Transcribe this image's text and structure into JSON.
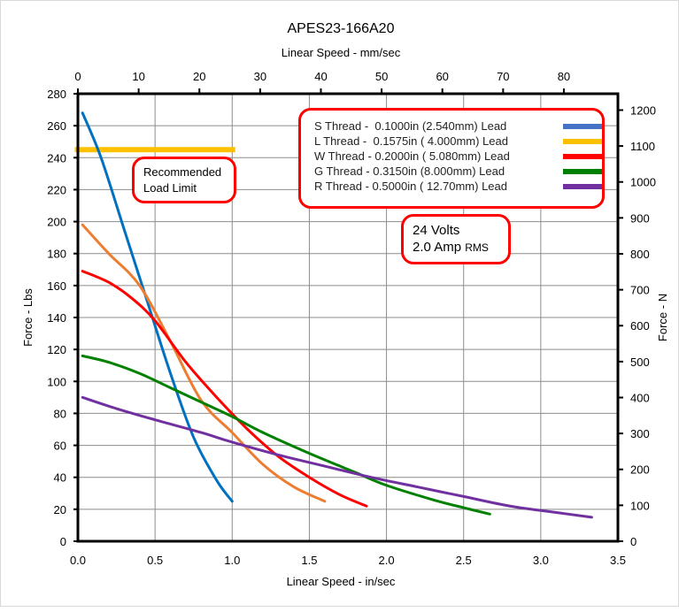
{
  "chart_data": {
    "type": "line",
    "title": "APES23-166A20",
    "xlabel": "Linear Speed - in/sec",
    "x2label": "Linear Speed - mm/sec",
    "ylabel": "Force - Lbs",
    "y2label": "Force - N",
    "xlim": [
      0,
      3.5
    ],
    "ylim": [
      0,
      280
    ],
    "x2lim": [
      0,
      88.9
    ],
    "y2lim": [
      0,
      1245.5
    ],
    "xticks": [
      "0.0",
      "0.5",
      "1.0",
      "1.5",
      "2.0",
      "2.5",
      "3.0",
      "3.5"
    ],
    "yticks": [
      "0",
      "20",
      "40",
      "60",
      "80",
      "100",
      "120",
      "140",
      "160",
      "180",
      "200",
      "220",
      "240",
      "260",
      "280"
    ],
    "x2ticks": [
      "0",
      "10",
      "20",
      "30",
      "40",
      "50",
      "60",
      "70",
      "80"
    ],
    "y2ticks": [
      "0",
      "100",
      "200",
      "300",
      "400",
      "500",
      "600",
      "700",
      "800",
      "900",
      "1000",
      "1100",
      "1200"
    ],
    "grid": true,
    "legend_position": "top-right",
    "series": [
      {
        "name": "S Thread -  0.1000in (2.540mm) Lead",
        "color": "#0070C0",
        "x": [
          0.03,
          0.15,
          0.3,
          0.45,
          0.6,
          0.75,
          0.9,
          1.0
        ],
        "y": [
          268,
          240,
          195,
          150,
          105,
          65,
          38,
          25
        ]
      },
      {
        "name": "L Thread -  0.1575in ( 4.000mm) Lead",
        "color": "#ED7D31",
        "x": [
          0.03,
          0.2,
          0.4,
          0.6,
          0.8,
          1.0,
          1.2,
          1.4,
          1.6
        ],
        "y": [
          198,
          180,
          160,
          125,
          88,
          68,
          48,
          34,
          25
        ]
      },
      {
        "name": "W Thread - 0.2000in ( 5.080mm) Lead",
        "color": "#FF0000",
        "x": [
          0.03,
          0.2,
          0.35,
          0.5,
          0.7,
          0.9,
          1.1,
          1.3,
          1.5,
          1.7,
          1.87
        ],
        "y": [
          169,
          162,
          152,
          138,
          112,
          90,
          70,
          53,
          40,
          29,
          22
        ]
      },
      {
        "name": "G Thread - 0.3150in (8.000mm) Lead",
        "color": "#008000",
        "x": [
          0.03,
          0.2,
          0.4,
          0.6,
          0.8,
          1.0,
          1.2,
          1.5,
          1.8,
          2.0,
          2.3,
          2.5,
          2.67
        ],
        "y": [
          116,
          112,
          105,
          96,
          87,
          78,
          68,
          55,
          43,
          35,
          26,
          21,
          17
        ]
      },
      {
        "name": "R Thread - 0.5000in ( 12.70mm) Lead",
        "color": "#7030A0",
        "x": [
          0.03,
          0.25,
          0.5,
          0.8,
          1.0,
          1.3,
          1.6,
          1.9,
          2.2,
          2.5,
          2.8,
          3.1,
          3.33
        ],
        "y": [
          90,
          83,
          76,
          68,
          62,
          54,
          47,
          40,
          34,
          28,
          22,
          18,
          15
        ]
      }
    ],
    "legend_swatch_colors": [
      "#4472C4",
      "#FFC000",
      "#FF0000",
      "#008000",
      "#7030A0"
    ],
    "load_limit": {
      "label": "Recommended Load Limit",
      "label_lines": [
        "Recommended",
        "Load Limit"
      ],
      "value": 245,
      "x": [
        -0.02,
        1.02
      ],
      "color": "#FFC000"
    },
    "annotations": {
      "voltage": "24 Volts",
      "current": "2.0 Amp",
      "current_unit": "RMS"
    }
  }
}
